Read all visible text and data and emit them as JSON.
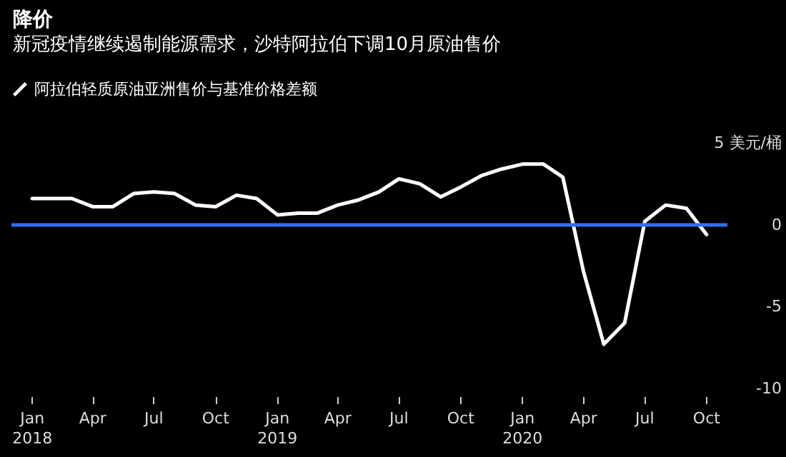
{
  "chart_data": {
    "type": "line",
    "title": "降价",
    "subtitle": "新冠疫情继续遏制能源需求，沙特阿拉伯下调10月原油售价",
    "x": [
      "2018-01",
      "2018-02",
      "2018-03",
      "2018-04",
      "2018-05",
      "2018-06",
      "2018-07",
      "2018-08",
      "2018-09",
      "2018-10",
      "2018-11",
      "2018-12",
      "2019-01",
      "2019-02",
      "2019-03",
      "2019-04",
      "2019-05",
      "2019-06",
      "2019-07",
      "2019-08",
      "2019-09",
      "2019-10",
      "2019-11",
      "2019-12",
      "2020-01",
      "2020-02",
      "2020-03",
      "2020-04",
      "2020-05",
      "2020-06",
      "2020-07",
      "2020-08",
      "2020-09",
      "2020-10"
    ],
    "series": [
      {
        "name": "阿拉伯轻质原油亚洲售价与基准价格差额",
        "color": "#ffffff",
        "values": [
          1.6,
          1.6,
          1.6,
          1.1,
          1.1,
          1.9,
          2.0,
          1.9,
          1.2,
          1.1,
          1.8,
          1.6,
          0.6,
          0.7,
          0.7,
          1.2,
          1.5,
          2.0,
          2.8,
          2.5,
          1.7,
          2.3,
          3.0,
          3.4,
          3.7,
          3.7,
          2.9,
          -2.9,
          -7.3,
          -6.0,
          0.2,
          1.2,
          1.0,
          -0.6
        ]
      }
    ],
    "xlim": [
      "2017-12",
      "2020-11"
    ],
    "xticks": [
      {
        "value": "2018-01",
        "label": "Jan\n2018"
      },
      {
        "value": "2018-04",
        "label": "Apr"
      },
      {
        "value": "2018-07",
        "label": "Jul"
      },
      {
        "value": "2018-10",
        "label": "Oct"
      },
      {
        "value": "2019-01",
        "label": "Jan\n2019"
      },
      {
        "value": "2019-04",
        "label": "Apr"
      },
      {
        "value": "2019-07",
        "label": "Jul"
      },
      {
        "value": "2019-10",
        "label": "Oct"
      },
      {
        "value": "2020-01",
        "label": "Jan\n2020"
      },
      {
        "value": "2020-04",
        "label": "Apr"
      },
      {
        "value": "2020-07",
        "label": "Jul"
      },
      {
        "value": "2020-10",
        "label": "Oct"
      }
    ],
    "ylim": [
      -10,
      5
    ],
    "yticks": [
      {
        "value": 5,
        "label": "5 美元/桶"
      },
      0,
      -5,
      -10
    ],
    "ref_lines": [
      {
        "axis": "y",
        "value": 0,
        "color": "#2f6ff0"
      }
    ],
    "grid": false,
    "legend": "top left",
    "marker": "none",
    "line_style": "solid"
  }
}
